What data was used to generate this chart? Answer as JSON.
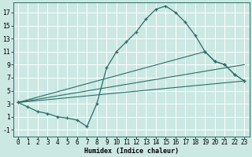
{
  "xlabel": "Humidex (Indice chaleur)",
  "bg_color": "#cbe8e3",
  "line_color": "#2a6e68",
  "grid_color": "#ffffff",
  "xlim": [
    -0.5,
    23.5
  ],
  "ylim": [
    -2.0,
    18.5
  ],
  "xticks": [
    0,
    1,
    2,
    3,
    4,
    5,
    6,
    7,
    8,
    9,
    10,
    11,
    12,
    13,
    14,
    15,
    16,
    17,
    18,
    19,
    20,
    21,
    22,
    23
  ],
  "yticks": [
    -1,
    1,
    3,
    5,
    7,
    9,
    11,
    13,
    15,
    17
  ],
  "line1_x": [
    0,
    23
  ],
  "line1_y": [
    3.2,
    6.5
  ],
  "line2_x": [
    0,
    1,
    2,
    3,
    4,
    5,
    6,
    7,
    8,
    9,
    10,
    11,
    12,
    13,
    14,
    15,
    16,
    17,
    18,
    19,
    20,
    21,
    22,
    23
  ],
  "line2_y": [
    3.2,
    2.5,
    1.8,
    1.5,
    1.0,
    0.8,
    0.5,
    -0.5,
    3.0,
    8.5,
    11.0,
    12.5,
    14.0,
    16.0,
    17.5,
    18.0,
    17.0,
    15.5,
    13.5,
    11.0,
    9.5,
    9.0,
    7.5,
    6.5
  ],
  "line3_x": [
    0,
    23
  ],
  "line3_y": [
    3.2,
    9.0
  ],
  "line4_x": [
    0,
    19,
    20,
    21,
    22,
    23
  ],
  "line4_y": [
    3.2,
    11.0,
    9.5,
    9.0,
    7.5,
    6.5
  ],
  "xlabel_fontsize": 6.0,
  "tick_fontsize": 5.5
}
